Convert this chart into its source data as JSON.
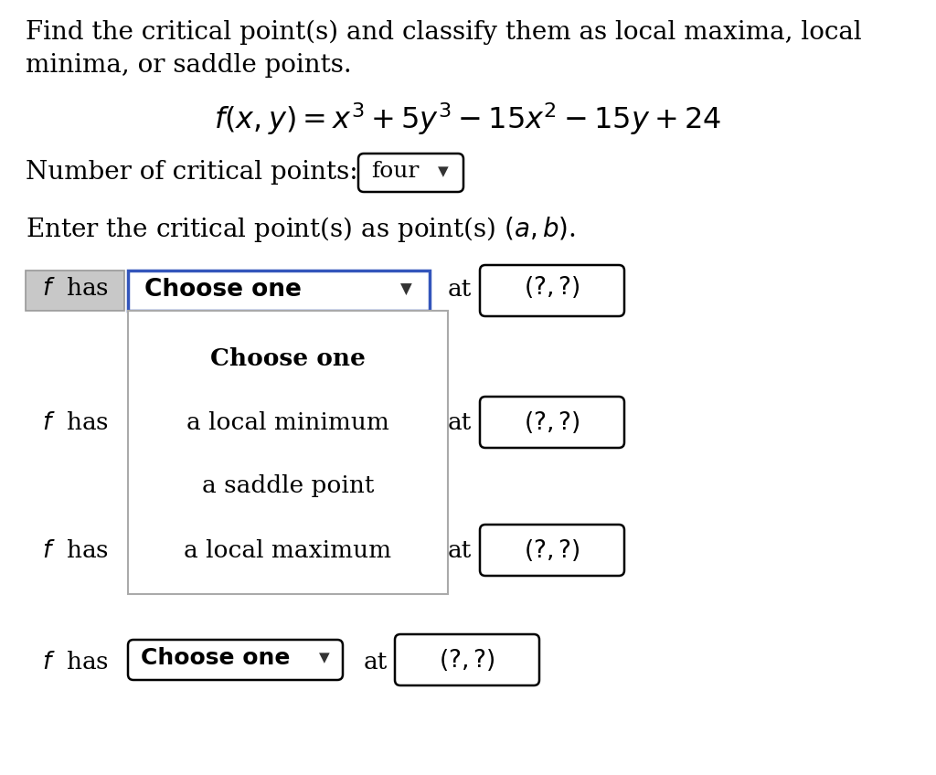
{
  "background_color": "#ffffff",
  "main_fs": 20,
  "formula_fs": 22,
  "label_fs": 19,
  "dropdown_fs": 19,
  "small_fs": 16,
  "line1": "Find the critical point(s) and classify them as local maxima, local",
  "line2": "minima, or saddle points.",
  "formula_latex": "$f(x, y) = x^3 + 5y^3 - 15x^2 - 15y + 24$",
  "num_critical_label": "Number of critical points:",
  "num_critical_value": "four",
  "enter_text_pre": "Enter the critical point(s) as point(s) ",
  "enter_text_post": "$(a, b)$.",
  "f_has_italic": "$f$  has",
  "choose_one": "Choose one",
  "at_text": "at",
  "point_placeholder": "$(?, ?)$",
  "dropdown_items": [
    "Choose one",
    "a local minimum",
    "a saddle point",
    "a local maximum"
  ],
  "grey_box_color": "#c8c8c8",
  "grey_box_edge": "#999999",
  "blue_border": "#3355bb",
  "black": "#000000",
  "white": "#ffffff",
  "light_grey_panel": "#f8f8f8"
}
